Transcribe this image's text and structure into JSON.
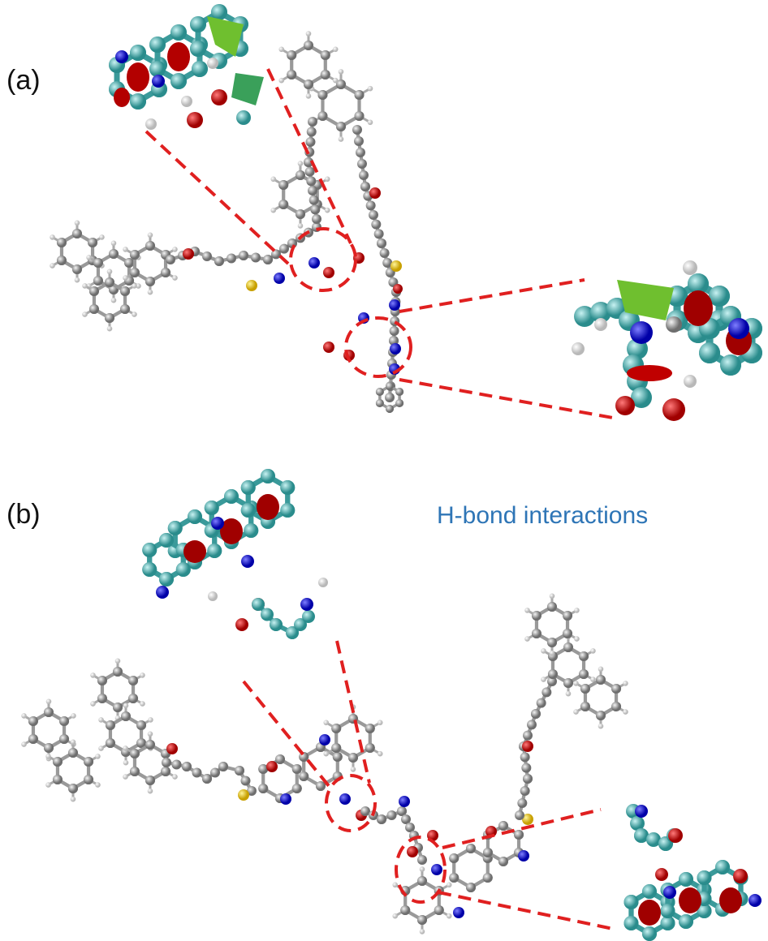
{
  "panel_a": {
    "label": "(a)"
  },
  "panel_b": {
    "label": "(b)",
    "annotation": "H-bond interactions"
  }
}
